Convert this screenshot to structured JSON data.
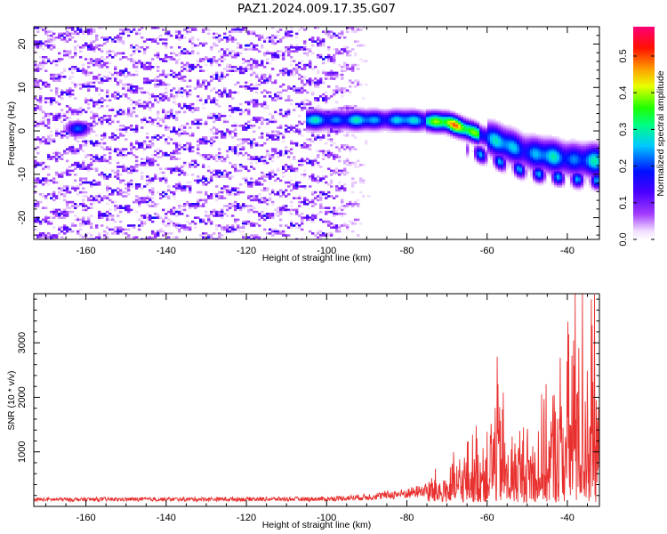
{
  "title": "PAZ1.2024.009.17.35.G07",
  "chart_data": [
    {
      "type": "heatmap",
      "xlabel": "Height of straight line (km)",
      "ylabel": "Frequency (Hz)",
      "xlim": [
        -173,
        -32
      ],
      "ylim": [
        -25,
        24
      ],
      "x_ticks": [
        -160,
        -140,
        -120,
        -100,
        -80,
        -60,
        -40
      ],
      "y_ticks": [
        -20,
        -10,
        0,
        10,
        20
      ],
      "colorbar": {
        "label": "Normalized spectral amplitude",
        "range": [
          0,
          0.58
        ],
        "ticks": [
          0.0,
          0.1,
          0.2,
          0.3,
          0.4,
          0.5
        ],
        "colormap": "rainbow (white-violet-blue-cyan-green-yellow-red-magenta)"
      },
      "features": [
        {
          "name": "noise",
          "x_range": [
            -173,
            -88
          ],
          "y_range": [
            -25,
            24
          ],
          "amplitude": 0.05
        },
        {
          "name": "signal-blob",
          "x": -162,
          "y": 0.5,
          "amplitude": 0.22
        },
        {
          "name": "signal-ridge",
          "x": [
            -105,
            -90,
            -80,
            -70,
            -60,
            -50,
            -40,
            -32
          ],
          "y": [
            2.5,
            2.5,
            2.5,
            2,
            -1.5,
            -5,
            -6.5,
            -7
          ],
          "peak_amplitude": 0.5
        }
      ]
    },
    {
      "type": "line",
      "xlabel": "Height of straight line (km)",
      "ylabel": "SNR (10 * v/v)",
      "xlim": [
        -173,
        -32
      ],
      "ylim": [
        0,
        3900
      ],
      "x_ticks": [
        -160,
        -140,
        -120,
        -100,
        -80,
        -60,
        -40
      ],
      "y_ticks": [
        1000,
        2000,
        3000
      ],
      "series_color": "#e8302e",
      "envelope": {
        "x": [
          -173,
          -100,
          -90,
          -80,
          -70,
          -65,
          -60,
          -57,
          -55,
          -50,
          -45,
          -40,
          -38,
          -36,
          -34,
          -32
        ],
        "y": [
          130,
          150,
          220,
          350,
          600,
          1000,
          1500,
          2400,
          1200,
          1400,
          1700,
          2700,
          3900,
          3500,
          3800,
          1700
        ]
      }
    }
  ]
}
